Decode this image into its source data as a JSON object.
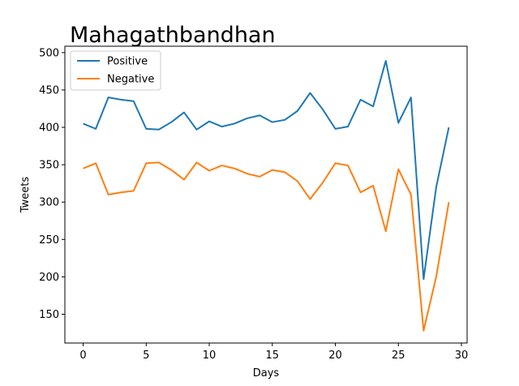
{
  "chart_data": {
    "type": "line",
    "title": "Mahagathbandhan",
    "xlabel": "Days",
    "ylabel": "Tweets",
    "xlim": [
      -1.45,
      30.45
    ],
    "ylim": [
      111.5,
      508.5
    ],
    "xticks": [
      0,
      5,
      10,
      15,
      20,
      25,
      30
    ],
    "yticks": [
      150,
      200,
      250,
      300,
      350,
      400,
      450,
      500
    ],
    "grid": false,
    "legend": "top-left",
    "x": [
      0,
      1,
      2,
      3,
      4,
      5,
      6,
      7,
      8,
      9,
      10,
      11,
      12,
      13,
      14,
      15,
      16,
      17,
      18,
      19,
      20,
      21,
      22,
      23,
      24,
      25,
      26,
      27,
      28,
      29
    ],
    "series": [
      {
        "name": "Positive",
        "color": "#1f77b4",
        "values": [
          405,
          398,
          440,
          437,
          435,
          398,
          397,
          407,
          420,
          397,
          408,
          401,
          405,
          412,
          416,
          407,
          410,
          422,
          446,
          424,
          398,
          401,
          437,
          428,
          489,
          406,
          440,
          197,
          320,
          400
        ]
      },
      {
        "name": "Negative",
        "color": "#ff7f0e",
        "values": [
          345,
          352,
          310,
          313,
          315,
          352,
          353,
          343,
          330,
          353,
          342,
          349,
          345,
          338,
          334,
          343,
          340,
          328,
          304,
          326,
          352,
          349,
          313,
          322,
          261,
          344,
          310,
          128,
          200,
          300
        ]
      }
    ]
  }
}
